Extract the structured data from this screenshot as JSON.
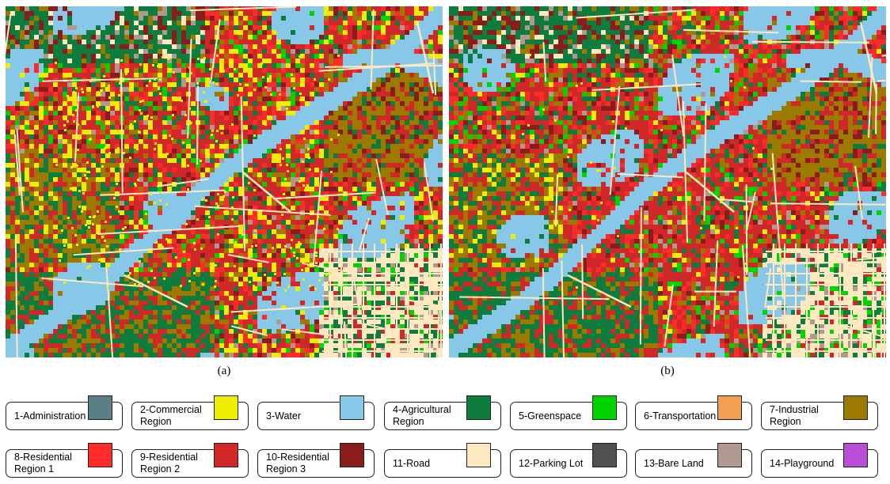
{
  "figure": {
    "panels": [
      {
        "id": "a",
        "caption": "(a)"
      },
      {
        "id": "b",
        "caption": "(b)"
      }
    ]
  },
  "legend": [
    {
      "label": "1-Administration",
      "color": "#5b7f87"
    },
    {
      "label": "2-Commercial\nRegion",
      "color": "#f0ee00"
    },
    {
      "label": "3-Water",
      "color": "#87c8e8"
    },
    {
      "label": "4-Agricultural\nRegion",
      "color": "#0d7d3e"
    },
    {
      "label": "5-Greenspace",
      "color": "#00d400"
    },
    {
      "label": "6-Transportation",
      "color": "#f0a050"
    },
    {
      "label": "7-Industrial\nRegion",
      "color": "#9c7a00"
    },
    {
      "label": "8-Residential\nRegion 1",
      "color": "#ff2a2a"
    },
    {
      "label": "9-Residential\nRegion 2",
      "color": "#d02828"
    },
    {
      "label": "10-Residential\nRegion 3",
      "color": "#8a1c1c"
    },
    {
      "label": "11-Road",
      "color": "#fde8c0"
    },
    {
      "label": "12-Parking Lot",
      "color": "#505050"
    },
    {
      "label": "13-Bare Land",
      "color": "#b09a90"
    },
    {
      "label": "14-Playground",
      "color": "#b84fd6"
    }
  ]
}
